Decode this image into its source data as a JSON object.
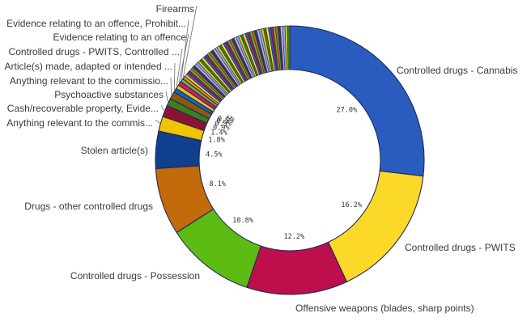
{
  "chart_data": {
    "type": "pie",
    "variant": "donut",
    "categories": [
      "Controlled drugs - Cannabis",
      "Controlled drugs - PWITS",
      "Offensive weapons (blades, sharp points)",
      "Controlled drugs - Possession",
      "Drugs - other controlled drugs",
      "Stolen article(s)",
      "Anything relevant to the commis...",
      "Cash/recoverable property, Evide...",
      "Psychoactive substances",
      "Anything relevant to the commissio...",
      "Article(s) made, adapted or intended ...",
      "Controlled drugs - PWITS, Controlled ...",
      "Evidence relating to an offence",
      "Evidence relating to an offence, Prohibit...",
      "Firearms"
    ],
    "values": [
      27.0,
      16.2,
      12.2,
      10.8,
      8.1,
      4.5,
      1.8,
      1.4,
      0.9,
      0.9,
      0.5,
      0.5,
      0.5,
      0.4,
      0.4
    ],
    "data_labels": [
      "27.0%",
      "16.2%",
      "12.2%",
      "10.8%",
      "8.1%",
      "4.5%",
      "1.8%",
      "1.4%",
      "0.9%",
      "0.9%",
      "0.5%",
      "0.5%",
      "",
      "",
      ""
    ],
    "colors": [
      "#2a5cbf",
      "#fcd928",
      "#bc0f4c",
      "#5cbc14",
      "#c36a0a",
      "#103f8e",
      "#f0c400",
      "#8a1432",
      "#3f7e1c",
      "#8a5a10",
      "#1565c0",
      "#e8c21a",
      "#d81b60",
      "#7cb342",
      "#e08a12"
    ],
    "small_slices": {
      "count": 50,
      "total_value": 14.3,
      "colors": [
        "#fcd928",
        "#2a5cbf",
        "#bc0f4c",
        "#5cbc14",
        "#c36a0a",
        "#103f8e",
        "#e8a0b8",
        "#6fb8e8",
        "#f0c400",
        "#3f7e1c"
      ]
    },
    "legend": "none",
    "title": ""
  }
}
